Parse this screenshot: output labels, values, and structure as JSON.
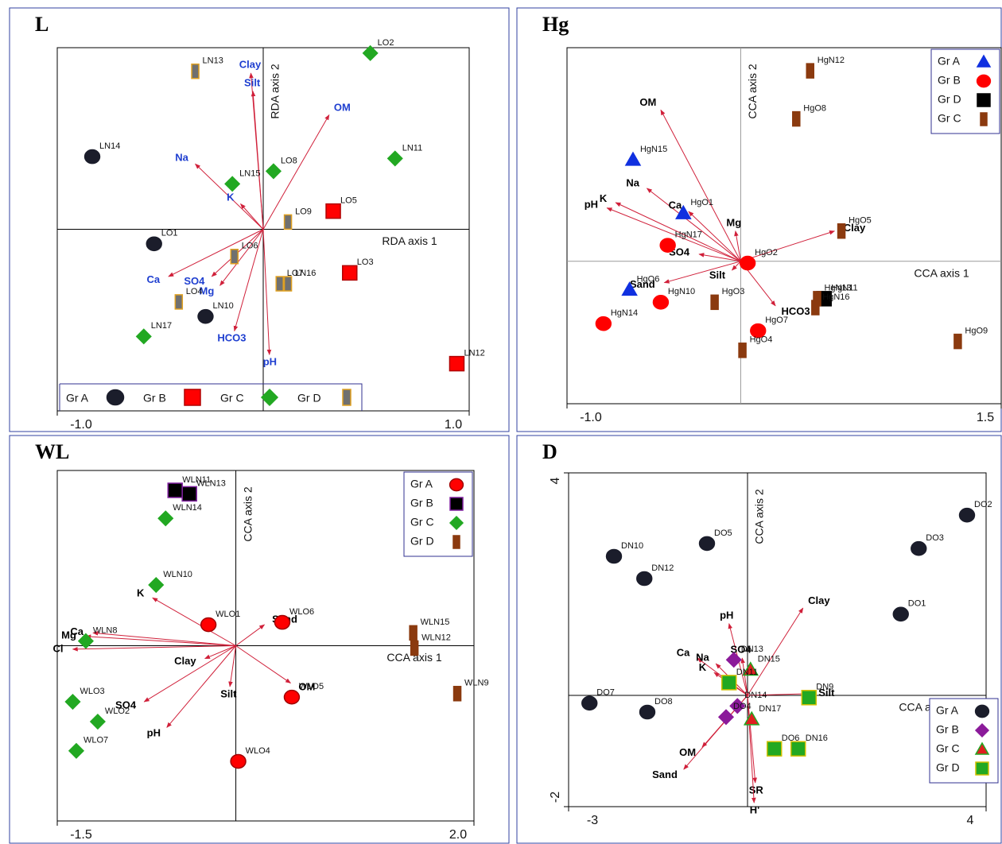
{
  "chart_data": [
    {
      "type": "scatter",
      "title": "L",
      "xlabel": "RDA axis 1",
      "ylabel": "RDA axis 2",
      "xlim": [
        -1,
        1
      ],
      "ylim": [
        -1,
        1
      ],
      "xticks": [
        {
          "value": -1,
          "label": "-1.0"
        },
        {
          "value": 1,
          "label": "1.0"
        }
      ],
      "legend": "bottom",
      "axis_color": "#000000",
      "series": [
        {
          "name": "Gr A",
          "marker": "circle",
          "color": "#1b1d2b",
          "stroke": "#1b1d2b",
          "x": [
            -0.83,
            -0.53,
            -0.28
          ],
          "values": [
            0.4,
            -0.08,
            -0.48
          ],
          "labels": [
            "LN14",
            "LO1",
            "LN10"
          ]
        },
        {
          "name": "Gr B",
          "marker": "square",
          "color": "#ff0000",
          "stroke": "#b00000",
          "x": [
            0.34,
            0.42,
            0.94
          ],
          "values": [
            0.1,
            -0.24,
            -0.74
          ],
          "labels": [
            "LO5",
            "LO3",
            "LN12"
          ]
        },
        {
          "name": "Gr C",
          "marker": "diamond",
          "color": "#22a822",
          "stroke": "#22a822",
          "x": [
            0.52,
            0.64,
            0.05,
            -0.15,
            -0.58
          ],
          "values": [
            0.97,
            0.39,
            0.32,
            0.25,
            -0.59
          ],
          "labels": [
            "LO2",
            "LN11",
            "LO8",
            "LN15",
            "LN17"
          ]
        },
        {
          "name": "Gr D",
          "marker": "rect",
          "color": "#707070",
          "stroke": "#e0a020",
          "x": [
            -0.33,
            0.12,
            -0.14,
            0.08,
            0.12,
            -0.41
          ],
          "values": [
            0.87,
            0.04,
            -0.15,
            -0.3,
            -0.3,
            -0.4
          ],
          "labels": [
            "LN13",
            "LO9",
            "LO6",
            "LO7",
            "LN16",
            "LO4"
          ]
        }
      ],
      "vectors": {
        "color": "#d0203a",
        "label_color": "#1f3fd0",
        "labels": [
          "Clay",
          "Silt",
          "OM",
          "Na",
          "K",
          "Ca",
          "SO4",
          "Mg",
          "HCO3",
          "pH"
        ],
        "x": [
          -0.06,
          -0.05,
          0.32,
          -0.33,
          -0.11,
          -0.46,
          -0.25,
          -0.21,
          -0.14,
          0.03
        ],
        "y": [
          0.86,
          0.76,
          0.63,
          0.36,
          0.14,
          -0.26,
          -0.26,
          -0.31,
          -0.56,
          -0.69
        ]
      }
    },
    {
      "type": "scatter",
      "title": "Hg",
      "xlabel": "CCA axis 1",
      "ylabel": "CCA axis 2",
      "xlim": [
        -1,
        1.5
      ],
      "ylim": [
        -0.8,
        1.2
      ],
      "xticks": [
        {
          "value": -1,
          "label": "-1.0"
        },
        1.5
      ],
      "legend": "upper right",
      "axis_color": "#999999",
      "series": [
        {
          "name": "Gr A",
          "marker": "triangle",
          "color": "#1030e0",
          "stroke": "#1030e0",
          "x": [
            -0.62,
            -0.33,
            -0.64
          ],
          "values": [
            0.57,
            0.27,
            -0.16
          ],
          "labels": [
            "HgN15",
            "HgO1",
            "HgO6"
          ]
        },
        {
          "name": "Gr B",
          "marker": "circle",
          "color": "#ff0000",
          "stroke": "#ff0000",
          "x": [
            -0.42,
            0.04,
            -0.46,
            -0.79,
            0.1
          ],
          "values": [
            0.09,
            -0.01,
            -0.23,
            -0.35,
            -0.39
          ],
          "labels": [
            "HgN17",
            "HgO2",
            "HgN10",
            "HgN14",
            "HgO7"
          ]
        },
        {
          "name": "Gr D",
          "marker": "square",
          "color": "#000000",
          "stroke": "#000000",
          "x": [
            0.48
          ],
          "values": [
            -0.21
          ],
          "labels": [
            "HgN11"
          ]
        },
        {
          "name": "Gr C",
          "marker": "rect",
          "color": "#8b3a0f",
          "stroke": "#8b3a0f",
          "x": [
            0.4,
            0.32,
            0.58,
            -0.15,
            0.01,
            0.44,
            0.43,
            1.25
          ],
          "values": [
            1.07,
            0.8,
            0.17,
            -0.23,
            -0.5,
            -0.21,
            -0.26,
            -0.45
          ],
          "labels": [
            "HgN12",
            "HgO8",
            "HgO5",
            "HgO3",
            "HgO4",
            "HgN13",
            "HgN16",
            "HgO9"
          ]
        }
      ],
      "vectors": {
        "color": "#d0203a",
        "label_color": "#000000",
        "labels": [
          "OM",
          "Na",
          "K",
          "pH",
          "Ca",
          "Mg",
          "Clay",
          "SO4",
          "Sand",
          "Silt",
          "HCO3"
        ],
        "x": [
          -0.46,
          -0.54,
          -0.72,
          -0.77,
          -0.3,
          -0.03,
          0.54,
          -0.24,
          -0.44,
          -0.05,
          0.2
        ],
        "y": [
          0.85,
          0.41,
          0.33,
          0.3,
          0.28,
          0.17,
          0.17,
          0.04,
          -0.12,
          -0.05,
          -0.25
        ]
      }
    },
    {
      "type": "scatter",
      "title": "WL",
      "xlabel": "CCA axis 1",
      "ylabel": "CCA axis 2",
      "xlim": [
        -1.5,
        2
      ],
      "ylim": [
        -1.5,
        1.5
      ],
      "xticks": [
        -1.5,
        {
          "value": 2,
          "label": "2.0"
        }
      ],
      "legend": "upper right",
      "axis_color": "#000000",
      "series": [
        {
          "name": "Gr A",
          "marker": "circle",
          "color": "#ff0000",
          "stroke": "#a00000",
          "x": [
            -0.23,
            0.39,
            0.47,
            0.02
          ],
          "values": [
            0.18,
            0.2,
            -0.44,
            -0.99
          ],
          "labels": [
            "WLO1",
            "WLO6",
            "WLO5",
            "WLO4"
          ]
        },
        {
          "name": "Gr B",
          "marker": "square",
          "color": "#000000",
          "stroke": "#8020a0",
          "x": [
            -0.51,
            -0.39
          ],
          "values": [
            1.33,
            1.3
          ],
          "labels": [
            "WLN11",
            "WLN13"
          ]
        },
        {
          "name": "Gr C",
          "marker": "diamond",
          "color": "#22a822",
          "stroke": "#22a822",
          "x": [
            -0.59,
            -0.67,
            -1.26,
            -1.37,
            -1.16,
            -1.34
          ],
          "values": [
            1.09,
            0.52,
            0.04,
            -0.48,
            -0.65,
            -0.9
          ],
          "labels": [
            "WLN14",
            "WLN10",
            "WLN8",
            "WLO3",
            "WLO2",
            "WLO7"
          ]
        },
        {
          "name": "Gr D",
          "marker": "rect",
          "color": "#8b3a0f",
          "stroke": "#8b3a0f",
          "x": [
            1.49,
            1.5,
            1.86
          ],
          "values": [
            0.11,
            -0.02,
            -0.41
          ],
          "labels": [
            "WLN15",
            "WLN12",
            "WLN9"
          ]
        }
      ],
      "vectors": {
        "color": "#d0203a",
        "label_color": "#000000",
        "labels": [
          "K",
          "Ca",
          "Mg",
          "Cl",
          "Clay",
          "SO4",
          "pH",
          "Silt",
          "Sand",
          "OM"
        ],
        "x": [
          -0.7,
          -1.2,
          -1.26,
          -1.37,
          -0.26,
          -0.77,
          -0.58,
          -0.05,
          0.24,
          0.46
        ],
        "y": [
          0.41,
          0.11,
          0.08,
          -0.03,
          -0.11,
          -0.48,
          -0.7,
          -0.35,
          0.18,
          -0.32
        ]
      }
    },
    {
      "type": "scatter",
      "title": "D",
      "xlabel": "CCA axis 1",
      "ylabel": "CCA axis 2",
      "xlim": [
        -3,
        4
      ],
      "ylim": [
        -2,
        4
      ],
      "xticks": [
        -3,
        4
      ],
      "yticks": [
        -2,
        4
      ],
      "legend": "lower right",
      "axis_color": "#000000",
      "series": [
        {
          "name": "Gr A",
          "marker": "circle",
          "color": "#1b1d2b",
          "stroke": "#1b1d2b",
          "x": [
            3.68,
            2.87,
            -2.24,
            -0.68,
            -1.73,
            2.57,
            -2.65,
            -1.68
          ],
          "values": [
            3.24,
            2.64,
            2.5,
            2.73,
            2.1,
            1.46,
            -0.14,
            -0.3
          ],
          "labels": [
            "DO2",
            "DO3",
            "DN10",
            "DO5",
            "DN12",
            "DO1",
            "DO7",
            "DO8"
          ]
        },
        {
          "name": "Gr B",
          "marker": "diamond",
          "color": "#8b1a9a",
          "stroke": "#8b1a9a",
          "x": [
            -0.23,
            -0.17,
            -0.36
          ],
          "values": [
            0.64,
            -0.19,
            -0.39
          ],
          "labels": [
            "DN13",
            "DN14",
            "DO4"
          ]
        },
        {
          "name": "Gr C",
          "marker": "triangle",
          "color": "#e02020",
          "stroke": "#22a822",
          "x": [
            0.05,
            0.07
          ],
          "values": [
            0.46,
            -0.43
          ],
          "labels": [
            "DN15",
            "DN17"
          ]
        },
        {
          "name": "Gr D",
          "marker": "square",
          "color": "#22a822",
          "stroke": "#d0c000",
          "x": [
            -0.31,
            1.03,
            0.45,
            0.85
          ],
          "values": [
            0.23,
            -0.04,
            -0.96,
            -0.96
          ],
          "labels": [
            "DN11",
            "DN9",
            "DO6",
            "DN16"
          ]
        }
      ],
      "vectors": {
        "color": "#d0203a",
        "label_color": "#000000",
        "labels": [
          "Clay",
          "pH",
          "SO4",
          "Ca",
          "Na",
          "K",
          "Silt",
          "OM",
          "Sand",
          "SR",
          "H'"
        ],
        "x": [
          0.93,
          -0.31,
          -0.09,
          -0.84,
          -0.53,
          -0.56,
          1.03,
          -0.76,
          -1.07,
          0.13,
          0.11
        ],
        "y": [
          1.57,
          1.29,
          0.67,
          0.67,
          0.57,
          0.41,
          0.03,
          -0.93,
          -1.33,
          -1.57,
          -1.93
        ]
      }
    }
  ]
}
